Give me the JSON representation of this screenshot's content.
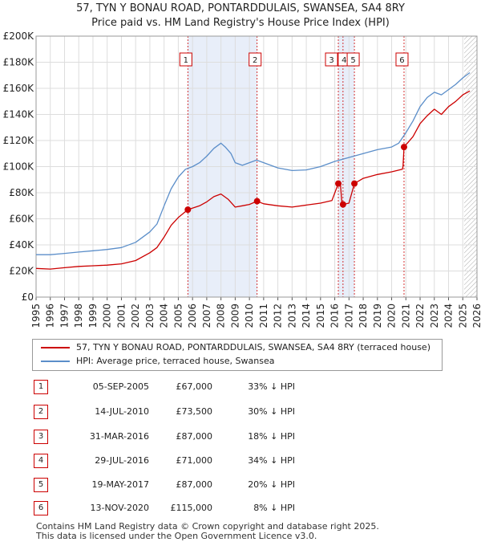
{
  "title": {
    "line1": "57, TYN Y BONAU ROAD, PONTARDDULAIS, SWANSEA, SA4 8RY",
    "line2": "Price paid vs. HM Land Registry's House Price Index (HPI)"
  },
  "colors": {
    "price_paid": "#cc0000",
    "hpi": "#5b8ec9",
    "highlight": "#e8eef9",
    "future_hatch": "#aaaaaa"
  },
  "chart_data": {
    "type": "line",
    "title": "Price paid vs. HM Land Registry's House Price Index (HPI)",
    "xlim": [
      1995,
      2026
    ],
    "ylim": [
      0,
      200000
    ],
    "yticks": [
      0,
      20000,
      40000,
      60000,
      80000,
      100000,
      120000,
      140000,
      160000,
      180000,
      200000
    ],
    "ytick_labels": [
      "£0",
      "£20K",
      "£40K",
      "£60K",
      "£80K",
      "£100K",
      "£120K",
      "£140K",
      "£160K",
      "£180K",
      "£200K"
    ],
    "xticks": [
      1995,
      1996,
      1997,
      1998,
      1999,
      2000,
      2001,
      2002,
      2003,
      2004,
      2005,
      2006,
      2007,
      2008,
      2009,
      2010,
      2011,
      2012,
      2013,
      2014,
      2015,
      2016,
      2017,
      2018,
      2019,
      2020,
      2021,
      2022,
      2023,
      2024,
      2025,
      2026
    ],
    "highlight_ranges": [
      [
        2005.67,
        2010.54
      ],
      [
        2016.25,
        2017.38
      ]
    ],
    "future_start": 2025.1,
    "series": [
      {
        "name": "57, TYN Y BONAU ROAD, PONTARDDULAIS, SWANSEA, SA4 8RY (terraced house)",
        "points": [
          [
            1995.0,
            22000
          ],
          [
            1996.0,
            21500
          ],
          [
            1997.0,
            22500
          ],
          [
            1998.0,
            23500
          ],
          [
            1999.0,
            24000
          ],
          [
            2000.0,
            24500
          ],
          [
            2001.0,
            25500
          ],
          [
            2002.0,
            28000
          ],
          [
            2003.0,
            34000
          ],
          [
            2003.5,
            38000
          ],
          [
            2004.0,
            46000
          ],
          [
            2004.5,
            55000
          ],
          [
            2005.0,
            61000
          ],
          [
            2005.67,
            67000
          ],
          [
            2006.5,
            70000
          ],
          [
            2007.0,
            73000
          ],
          [
            2007.5,
            77000
          ],
          [
            2008.0,
            79000
          ],
          [
            2008.5,
            75000
          ],
          [
            2009.0,
            69000
          ],
          [
            2009.5,
            70000
          ],
          [
            2010.0,
            71000
          ],
          [
            2010.54,
            73500
          ],
          [
            2011.0,
            71500
          ],
          [
            2012.0,
            70000
          ],
          [
            2013.0,
            69000
          ],
          [
            2014.0,
            70500
          ],
          [
            2015.0,
            72000
          ],
          [
            2015.8,
            74000
          ],
          [
            2016.25,
            87000
          ],
          [
            2016.4,
            86000
          ],
          [
            2016.5,
            72000
          ],
          [
            2016.58,
            71000
          ],
          [
            2017.0,
            72000
          ],
          [
            2017.38,
            87000
          ],
          [
            2018.0,
            91000
          ],
          [
            2019.0,
            94000
          ],
          [
            2020.0,
            96000
          ],
          [
            2020.75,
            98000
          ],
          [
            2020.8,
            100000
          ],
          [
            2020.87,
            115000
          ],
          [
            2021.5,
            123000
          ],
          [
            2022.0,
            133000
          ],
          [
            2022.5,
            139000
          ],
          [
            2023.0,
            144000
          ],
          [
            2023.5,
            140000
          ],
          [
            2024.0,
            146000
          ],
          [
            2024.5,
            150000
          ],
          [
            2025.0,
            155000
          ],
          [
            2025.5,
            158000
          ]
        ]
      },
      {
        "name": "HPI: Average price, terraced house, Swansea",
        "points": [
          [
            1995.0,
            32500
          ],
          [
            1996.0,
            32500
          ],
          [
            1997.0,
            33500
          ],
          [
            1998.0,
            34500
          ],
          [
            1999.0,
            35500
          ],
          [
            2000.0,
            36500
          ],
          [
            2001.0,
            38000
          ],
          [
            2002.0,
            42000
          ],
          [
            2003.0,
            50000
          ],
          [
            2003.5,
            56000
          ],
          [
            2004.0,
            70000
          ],
          [
            2004.5,
            83000
          ],
          [
            2005.0,
            92000
          ],
          [
            2005.5,
            98000
          ],
          [
            2006.0,
            100000
          ],
          [
            2006.5,
            103000
          ],
          [
            2007.0,
            108000
          ],
          [
            2007.5,
            114000
          ],
          [
            2008.0,
            118000
          ],
          [
            2008.3,
            115000
          ],
          [
            2008.7,
            110000
          ],
          [
            2009.0,
            103000
          ],
          [
            2009.5,
            101000
          ],
          [
            2010.0,
            103000
          ],
          [
            2010.5,
            105000
          ],
          [
            2011.0,
            103000
          ],
          [
            2012.0,
            99000
          ],
          [
            2013.0,
            97000
          ],
          [
            2014.0,
            97500
          ],
          [
            2015.0,
            100000
          ],
          [
            2016.0,
            104000
          ],
          [
            2017.0,
            107000
          ],
          [
            2018.0,
            110000
          ],
          [
            2019.0,
            113000
          ],
          [
            2020.0,
            115000
          ],
          [
            2020.5,
            118000
          ],
          [
            2021.0,
            126000
          ],
          [
            2021.5,
            135000
          ],
          [
            2022.0,
            146000
          ],
          [
            2022.5,
            153000
          ],
          [
            2023.0,
            157000
          ],
          [
            2023.5,
            155000
          ],
          [
            2024.0,
            159000
          ],
          [
            2024.5,
            163000
          ],
          [
            2025.0,
            168000
          ],
          [
            2025.5,
            172000
          ]
        ]
      }
    ],
    "markers": [
      {
        "label": "1",
        "x": 2005.67,
        "y": 67000
      },
      {
        "label": "2",
        "x": 2010.54,
        "y": 73500
      },
      {
        "label": "3",
        "x": 2016.25,
        "y": 87000
      },
      {
        "label": "4",
        "x": 2016.58,
        "y": 71000
      },
      {
        "label": "5",
        "x": 2017.38,
        "y": 87000
      },
      {
        "label": "6",
        "x": 2020.87,
        "y": 115000
      }
    ]
  },
  "legend": {
    "property_label": "57, TYN Y BONAU ROAD, PONTARDDULAIS, SWANSEA, SA4 8RY (terraced house)",
    "hpi_label": "HPI: Average price, terraced house, Swansea"
  },
  "sales": [
    {
      "num": "1",
      "date": "05-SEP-2005",
      "price": "£67,000",
      "hpi": "33% ↓ HPI"
    },
    {
      "num": "2",
      "date": "14-JUL-2010",
      "price": "£73,500",
      "hpi": "30% ↓ HPI"
    },
    {
      "num": "3",
      "date": "31-MAR-2016",
      "price": "£87,000",
      "hpi": "18% ↓ HPI"
    },
    {
      "num": "4",
      "date": "29-JUL-2016",
      "price": "£71,000",
      "hpi": "34% ↓ HPI"
    },
    {
      "num": "5",
      "date": "19-MAY-2017",
      "price": "£87,000",
      "hpi": "20% ↓ HPI"
    },
    {
      "num": "6",
      "date": "13-NOV-2020",
      "price": "£115,000",
      "hpi": "8% ↓ HPI"
    }
  ],
  "footer": {
    "line1": "Contains HM Land Registry data © Crown copyright and database right 2025.",
    "line2": "This data is licensed under the Open Government Licence v3.0."
  }
}
